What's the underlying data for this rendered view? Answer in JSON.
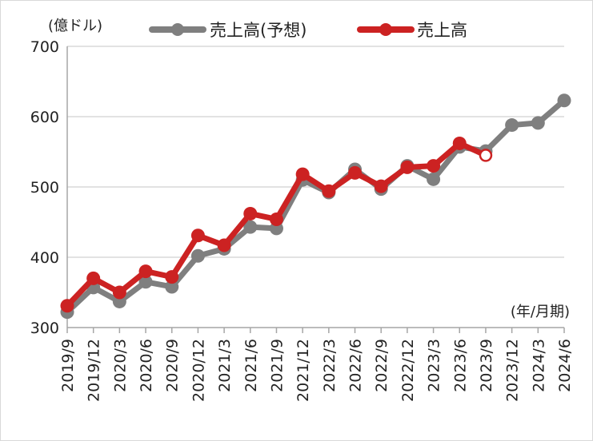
{
  "chart_data": {
    "type": "line",
    "categories": [
      "2019/9",
      "2019/12",
      "2020/3",
      "2020/6",
      "2020/9",
      "2020/12",
      "2021/3",
      "2021/6",
      "2021/9",
      "2021/12",
      "2022/3",
      "2022/6",
      "2022/9",
      "2022/12",
      "2023/3",
      "2023/6",
      "2023/9",
      "2023/12",
      "2024/3",
      "2024/6"
    ],
    "series": [
      {
        "name": "売上高(予想)",
        "color": "#7f7f7f",
        "values": [
          322,
          357,
          337,
          365,
          358,
          402,
          412,
          443,
          441,
          510,
          492,
          525,
          497,
          530,
          511,
          557,
          551,
          588,
          591,
          623
        ]
      },
      {
        "name": "売上高",
        "color": "#cc2222",
        "values": [
          331,
          370,
          350,
          380,
          372,
          431,
          417,
          462,
          454,
          518,
          494,
          520,
          501,
          528,
          530,
          562,
          545,
          null,
          null,
          null
        ],
        "open_marker_index": 16
      }
    ],
    "y_unit_label": "(億ドル)",
    "x_unit_label": "(年/月期)",
    "ylim": [
      300,
      700
    ],
    "yticks": [
      300,
      400,
      500,
      600,
      700
    ],
    "grid": true,
    "legend_position": "top"
  }
}
